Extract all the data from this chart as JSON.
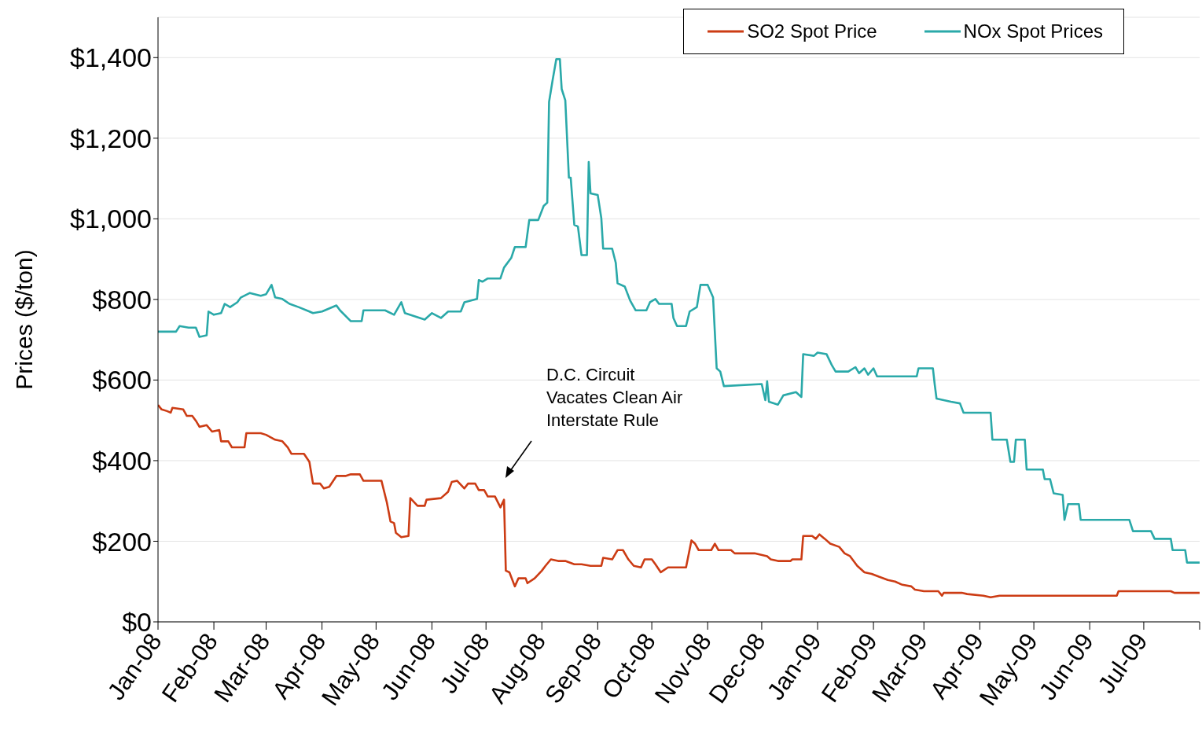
{
  "chart_data": {
    "type": "line",
    "ylabel": "Prices  ($/ton)",
    "legend": "top right",
    "grid": "y",
    "line_style": "solid",
    "xlim": [
      "2008-01-01",
      "2009-08-01"
    ],
    "xticks": [
      {
        "value": "2008-01-01",
        "label": "Jan-08"
      },
      {
        "value": "2008-02-01",
        "label": "Feb-08"
      },
      {
        "value": "2008-03-01",
        "label": "Mar-08"
      },
      {
        "value": "2008-04-01",
        "label": "Apr-08"
      },
      {
        "value": "2008-05-01",
        "label": "May-08"
      },
      {
        "value": "2008-06-01",
        "label": "Jun-08"
      },
      {
        "value": "2008-07-01",
        "label": "Jul-08"
      },
      {
        "value": "2008-08-01",
        "label": "Aug-08"
      },
      {
        "value": "2008-09-01",
        "label": "Sep-08"
      },
      {
        "value": "2008-10-01",
        "label": "Oct-08"
      },
      {
        "value": "2008-11-01",
        "label": "Nov-08"
      },
      {
        "value": "2008-12-01",
        "label": "Dec-08"
      },
      {
        "value": "2009-01-01",
        "label": "Jan-09"
      },
      {
        "value": "2009-02-01",
        "label": "Feb-09"
      },
      {
        "value": "2009-03-01",
        "label": "Mar-09"
      },
      {
        "value": "2009-04-01",
        "label": "Apr-09"
      },
      {
        "value": "2009-05-01",
        "label": "May-09"
      },
      {
        "value": "2009-06-01",
        "label": "Jun-09"
      },
      {
        "value": "2009-07-01",
        "label": "Jul-09"
      },
      {
        "value": "2009-08-01",
        "label": null
      }
    ],
    "ylim": [
      0,
      1500
    ],
    "yticks": [
      {
        "value": 0,
        "label": "$0"
      },
      {
        "value": 200,
        "label": "$200"
      },
      {
        "value": 400,
        "label": "$400"
      },
      {
        "value": 600,
        "label": "$600"
      },
      {
        "value": 800,
        "label": "$800"
      },
      {
        "value": 1000,
        "label": "$1,000"
      },
      {
        "value": 1200,
        "label": "$1,200"
      },
      {
        "value": 1400,
        "label": "$1,400"
      }
    ],
    "annotations": [
      "D.C. Circuit\nVacates Clean Air\nInterstate Rule"
    ],
    "series": [
      {
        "name": "SO2 Spot Price",
        "color": "#cc3c14",
        "x": [
          "2008-01-01",
          "2008-01-03",
          "2008-01-06",
          "2008-01-08",
          "2008-01-09",
          "2008-01-15",
          "2008-01-17",
          "2008-01-20",
          "2008-01-22",
          "2008-01-24",
          "2008-01-28",
          "2008-01-31",
          "2008-02-04",
          "2008-02-05",
          "2008-02-09",
          "2008-02-11",
          "2008-02-18",
          "2008-02-19",
          "2008-02-27",
          "2008-03-01",
          "2008-03-06",
          "2008-03-10",
          "2008-03-13",
          "2008-03-15",
          "2008-03-22",
          "2008-03-25",
          "2008-03-27",
          "2008-03-31",
          "2008-04-02",
          "2008-04-05",
          "2008-04-09",
          "2008-04-14",
          "2008-04-17",
          "2008-04-22",
          "2008-04-24",
          "2008-05-04",
          "2008-05-07",
          "2008-05-09",
          "2008-05-11",
          "2008-05-12",
          "2008-05-15",
          "2008-05-19",
          "2008-05-20",
          "2008-05-24",
          "2008-05-28",
          "2008-05-29",
          "2008-06-06",
          "2008-06-10",
          "2008-06-12",
          "2008-06-15",
          "2008-06-19",
          "2008-06-21",
          "2008-06-25",
          "2008-06-27",
          "2008-06-30",
          "2008-07-02",
          "2008-07-06",
          "2008-07-09",
          "2008-07-11",
          "2008-07-12",
          "2008-07-14",
          "2008-07-17",
          "2008-07-19",
          "2008-07-23",
          "2008-07-24",
          "2008-07-28",
          "2008-08-01",
          "2008-08-03",
          "2008-08-06",
          "2008-08-10",
          "2008-08-14",
          "2008-08-19",
          "2008-08-23",
          "2008-08-28",
          "2008-09-03",
          "2008-09-04",
          "2008-09-09",
          "2008-09-12",
          "2008-09-15",
          "2008-09-18",
          "2008-09-21",
          "2008-09-25",
          "2008-09-27",
          "2008-10-01",
          "2008-10-03",
          "2008-10-06",
          "2008-10-10",
          "2008-10-20",
          "2008-10-23",
          "2008-10-25",
          "2008-10-27",
          "2008-11-03",
          "2008-11-05",
          "2008-11-07",
          "2008-11-14",
          "2008-11-16",
          "2008-11-27",
          "2008-12-04",
          "2008-12-06",
          "2008-12-10",
          "2008-12-17",
          "2008-12-18",
          "2008-12-23",
          "2008-12-24",
          "2008-12-29",
          "2008-12-31",
          "2009-01-02",
          "2009-01-05",
          "2009-01-08",
          "2009-01-13",
          "2009-01-16",
          "2009-01-19",
          "2009-01-23",
          "2009-01-27",
          "2009-01-31",
          "2009-02-04",
          "2009-02-09",
          "2009-02-13",
          "2009-02-17",
          "2009-02-22",
          "2009-02-24",
          "2009-03-01",
          "2009-03-09",
          "2009-03-11",
          "2009-03-12",
          "2009-03-22",
          "2009-03-25",
          "2009-04-03",
          "2009-04-07",
          "2009-04-12",
          "2009-06-16",
          "2009-06-17",
          "2009-07-16",
          "2009-07-18",
          "2009-08-01"
        ],
        "values": [
          538,
          527,
          523,
          519,
          531,
          527,
          511,
          511,
          499,
          484,
          488,
          472,
          476,
          448,
          448,
          433,
          433,
          468,
          468,
          464,
          452,
          448,
          433,
          417,
          417,
          397,
          343,
          343,
          331,
          335,
          362,
          362,
          366,
          366,
          350,
          350,
          296,
          249,
          245,
          221,
          210,
          213,
          307,
          288,
          288,
          303,
          307,
          323,
          347,
          350,
          331,
          343,
          343,
          327,
          327,
          311,
          311,
          284,
          303,
          127,
          123,
          88,
          108,
          108,
          96,
          108,
          127,
          139,
          155,
          151,
          151,
          143,
          143,
          139,
          139,
          159,
          155,
          178,
          178,
          155,
          139,
          135,
          155,
          155,
          143,
          123,
          135,
          135,
          202,
          194,
          178,
          178,
          194,
          178,
          178,
          170,
          170,
          163,
          155,
          151,
          151,
          155,
          155,
          213,
          213,
          206,
          217,
          206,
          194,
          186,
          170,
          163,
          139,
          123,
          119,
          112,
          104,
          100,
          92,
          88,
          80,
          76,
          76,
          65,
          72,
          72,
          69,
          65,
          61,
          65,
          65,
          76,
          76,
          72,
          72
        ]
      },
      {
        "name": "NOx Spot Prices",
        "color": "#2aa9a9",
        "x": [
          "2008-01-01",
          "2008-01-11",
          "2008-01-13",
          "2008-01-18",
          "2008-01-22",
          "2008-01-24",
          "2008-01-28",
          "2008-01-29",
          "2008-02-01",
          "2008-02-05",
          "2008-02-07",
          "2008-02-10",
          "2008-02-14",
          "2008-02-16",
          "2008-02-21",
          "2008-02-27",
          "2008-03-01",
          "2008-03-04",
          "2008-03-06",
          "2008-03-10",
          "2008-03-14",
          "2008-03-19",
          "2008-03-25",
          "2008-03-27",
          "2008-04-01",
          "2008-04-09",
          "2008-04-11",
          "2008-04-17",
          "2008-04-23",
          "2008-04-24",
          "2008-05-06",
          "2008-05-11",
          "2008-05-15",
          "2008-05-17",
          "2008-05-28",
          "2008-06-01",
          "2008-06-06",
          "2008-06-10",
          "2008-06-17",
          "2008-06-19",
          "2008-06-26",
          "2008-06-27",
          "2008-06-29",
          "2008-07-02",
          "2008-07-09",
          "2008-07-11",
          "2008-07-15",
          "2008-07-17",
          "2008-07-23",
          "2008-07-25",
          "2008-07-30",
          "2008-08-02",
          "2008-08-04",
          "2008-08-05",
          "2008-08-07",
          "2008-08-09",
          "2008-08-11",
          "2008-08-12",
          "2008-08-14",
          "2008-08-16",
          "2008-08-17",
          "2008-08-19",
          "2008-08-21",
          "2008-08-23",
          "2008-08-26",
          "2008-08-27",
          "2008-08-28",
          "2008-09-01",
          "2008-09-03",
          "2008-09-04",
          "2008-09-09",
          "2008-09-11",
          "2008-09-12",
          "2008-09-16",
          "2008-09-19",
          "2008-09-22",
          "2008-09-28",
          "2008-09-30",
          "2008-10-03",
          "2008-10-05",
          "2008-10-12",
          "2008-10-13",
          "2008-10-15",
          "2008-10-20",
          "2008-10-22",
          "2008-10-26",
          "2008-10-28",
          "2008-11-01",
          "2008-11-04",
          "2008-11-06",
          "2008-11-08",
          "2008-11-10",
          "2008-12-01",
          "2008-12-03",
          "2008-12-04",
          "2008-12-05",
          "2008-12-10",
          "2008-12-13",
          "2008-12-20",
          "2008-12-23",
          "2008-12-24",
          "2008-12-30",
          "2009-01-01",
          "2009-01-06",
          "2009-01-09",
          "2009-01-11",
          "2009-01-18",
          "2009-01-22",
          "2009-01-24",
          "2009-01-27",
          "2009-01-29",
          "2009-02-01",
          "2009-02-03",
          "2009-02-05",
          "2009-02-25",
          "2009-02-26",
          "2009-03-06",
          "2009-03-07",
          "2009-03-08",
          "2009-03-12",
          "2009-03-16",
          "2009-03-21",
          "2009-03-23",
          "2009-04-07",
          "2009-04-08",
          "2009-04-16",
          "2009-04-18",
          "2009-04-20",
          "2009-04-21",
          "2009-04-26",
          "2009-04-27",
          "2009-05-06",
          "2009-05-07",
          "2009-05-10",
          "2009-05-12",
          "2009-05-17",
          "2009-05-18",
          "2009-05-20",
          "2009-05-26",
          "2009-05-27",
          "2009-06-23",
          "2009-06-25",
          "2009-07-05",
          "2009-07-07",
          "2009-07-16",
          "2009-07-17",
          "2009-07-24",
          "2009-07-25",
          "2009-08-01"
        ],
        "values": [
          720,
          720,
          734,
          730,
          730,
          707,
          711,
          770,
          762,
          766,
          789,
          781,
          793,
          805,
          816,
          809,
          813,
          836,
          805,
          801,
          789,
          781,
          770,
          766,
          770,
          785,
          773,
          746,
          746,
          773,
          773,
          762,
          793,
          766,
          750,
          766,
          754,
          770,
          770,
          793,
          801,
          848,
          844,
          852,
          852,
          879,
          903,
          930,
          930,
          997,
          997,
          1032,
          1040,
          1290,
          1345,
          1396,
          1396,
          1322,
          1294,
          1102,
          1102,
          985,
          981,
          910,
          910,
          1141,
          1063,
          1059,
          1001,
          926,
          926,
          891,
          840,
          832,
          797,
          773,
          773,
          793,
          801,
          789,
          789,
          754,
          734,
          734,
          770,
          781,
          836,
          836,
          805,
          629,
          621,
          585,
          590,
          550,
          597,
          546,
          539,
          562,
          570,
          558,
          664,
          660,
          668,
          664,
          636,
          621,
          621,
          632,
          617,
          629,
          613,
          629,
          609,
          609,
          609,
          629,
          629,
          589,
          554,
          550,
          546,
          542,
          519,
          519,
          452,
          452,
          397,
          397,
          452,
          452,
          378,
          378,
          354,
          354,
          319,
          315,
          253,
          292,
          292,
          253,
          253,
          225,
          225,
          206,
          206,
          178,
          178,
          147,
          147
        ]
      }
    ]
  }
}
